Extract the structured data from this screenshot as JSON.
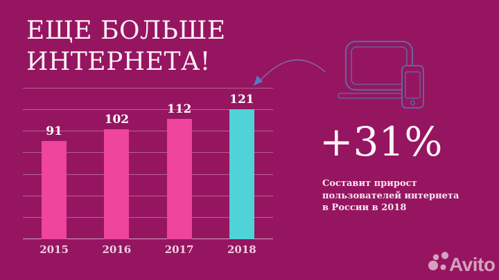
{
  "slide": {
    "title_line1": "ЕЩЕ БОЛЬШЕ",
    "title_line2": "ИНТЕРНЕТА!",
    "stat_value": "+31%",
    "stat_caption": "Составит прирост\nпользователей интернета\nв России в 2018"
  },
  "chart_data": {
    "type": "bar",
    "categories": [
      "2015",
      "2016",
      "2017",
      "2018"
    ],
    "values": [
      91,
      102,
      112,
      121
    ],
    "bar_colors": [
      "#EF459C",
      "#EF459C",
      "#EF459C",
      "#4FD3D8"
    ],
    "title": "ЕЩЕ БОЛЬШЕ ИНТЕРНЕТА!",
    "xlabel": "",
    "ylabel": "",
    "ylim": [
      0,
      140
    ],
    "gridline_step": 20,
    "grid": true,
    "legend": false,
    "annotation": "+31% Составит прирост пользователей интернета в России в 2018"
  },
  "icons": {
    "devices": "laptop-and-phone-icon",
    "arrow": "curved-arrow-icon"
  },
  "colors": {
    "background": "#961560",
    "bar_pink": "#EF459C",
    "bar_cyan": "#4FD3D8",
    "icon_stroke": "#62659D",
    "arrow_stroke": "#8878B5",
    "arrowhead": "#5577CC",
    "text": "#FCF1F7",
    "logo": "rgba(255,255,255,0.6)"
  },
  "footer": {
    "logo_text": "Avito"
  }
}
